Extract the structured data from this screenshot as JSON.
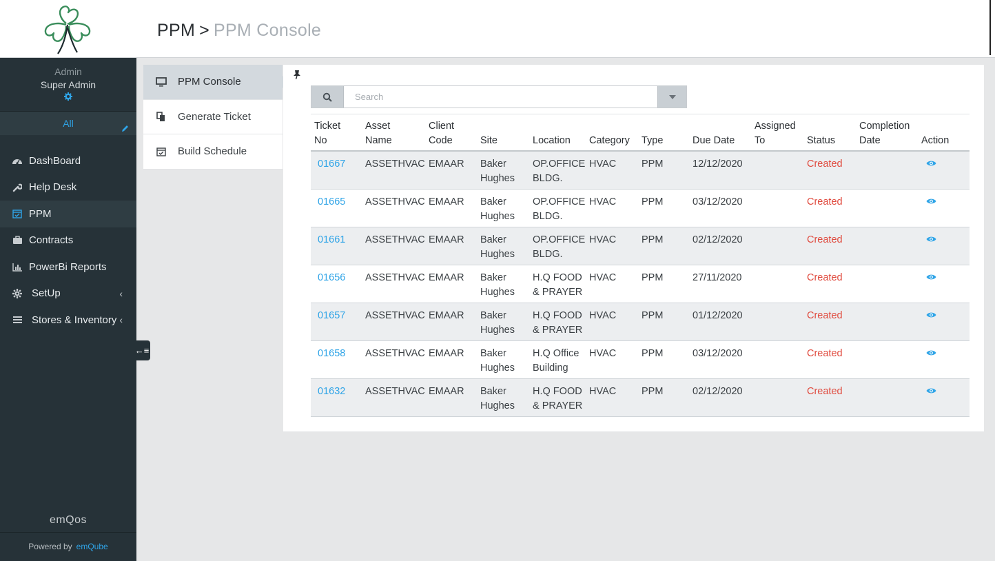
{
  "header": {
    "breadcrumb_root": "PPM",
    "breadcrumb_sep": ">",
    "breadcrumb_current": "PPM Console"
  },
  "sidebar": {
    "user_role": "Admin",
    "user_name": "Super Admin",
    "filter_label": "All",
    "items": [
      {
        "label": "DashBoard",
        "icon": "dashboard-icon"
      },
      {
        "label": "Help Desk",
        "icon": "wrench-icon"
      },
      {
        "label": "PPM",
        "icon": "calendar-check-icon"
      },
      {
        "label": "Contracts",
        "icon": "briefcase-icon"
      },
      {
        "label": "PowerBi Reports",
        "icon": "bar-chart-icon"
      },
      {
        "label": "SetUp",
        "icon": "gear-icon",
        "chevron": "‹"
      },
      {
        "label": "Stores & Inventory",
        "icon": "list-icon",
        "chevron": "‹"
      }
    ],
    "brand": "emQos",
    "powered_by": "Powered by",
    "powered_link": "emQube",
    "toggle": "←≡"
  },
  "submenu": {
    "items": [
      {
        "label": "PPM Console",
        "icon": "monitor-icon"
      },
      {
        "label": "Generate Ticket",
        "icon": "copy-icon"
      },
      {
        "label": "Build Schedule",
        "icon": "calendar-icon"
      }
    ]
  },
  "search": {
    "placeholder": "Search"
  },
  "table": {
    "headers": {
      "ticket_no": [
        "Ticket",
        "No"
      ],
      "asset_name": [
        "Asset",
        "Name"
      ],
      "client_code": [
        "Client",
        "Code"
      ],
      "site": "Site",
      "location": "Location",
      "category": "Category",
      "type": "Type",
      "due_date": "Due Date",
      "assigned_to": [
        "Assigned",
        "To"
      ],
      "status": "Status",
      "completion_date": [
        "Completion",
        "Date"
      ],
      "action": "Action"
    },
    "rows": [
      {
        "ticket": "01667",
        "asset": "ASSETHVAC",
        "client": "EMAAR",
        "site": [
          "Baker",
          "Hughes"
        ],
        "location": [
          "OP.OFFICE",
          "BLDG."
        ],
        "category": "HVAC",
        "type": "PPM",
        "due": "12/12/2020",
        "assigned": "",
        "status": "Created",
        "completion": ""
      },
      {
        "ticket": "01665",
        "asset": "ASSETHVAC",
        "client": "EMAAR",
        "site": [
          "Baker",
          "Hughes"
        ],
        "location": [
          "OP.OFFICE",
          "BLDG."
        ],
        "category": "HVAC",
        "type": "PPM",
        "due": "03/12/2020",
        "assigned": "",
        "status": "Created",
        "completion": ""
      },
      {
        "ticket": "01661",
        "asset": "ASSETHVAC",
        "client": "EMAAR",
        "site": [
          "Baker",
          "Hughes"
        ],
        "location": [
          "OP.OFFICE",
          "BLDG."
        ],
        "category": "HVAC",
        "type": "PPM",
        "due": "02/12/2020",
        "assigned": "",
        "status": "Created",
        "completion": ""
      },
      {
        "ticket": "01656",
        "asset": "ASSETHVAC",
        "client": "EMAAR",
        "site": [
          "Baker",
          "Hughes"
        ],
        "location": [
          "H.Q FOOD",
          "& PRAYER"
        ],
        "category": "HVAC",
        "type": "PPM",
        "due": "27/11/2020",
        "assigned": "",
        "status": "Created",
        "completion": ""
      },
      {
        "ticket": "01657",
        "asset": "ASSETHVAC",
        "client": "EMAAR",
        "site": [
          "Baker",
          "Hughes"
        ],
        "location": [
          "H.Q FOOD",
          "& PRAYER"
        ],
        "category": "HVAC",
        "type": "PPM",
        "due": "01/12/2020",
        "assigned": "",
        "status": "Created",
        "completion": ""
      },
      {
        "ticket": "01658",
        "asset": "ASSETHVAC",
        "client": "EMAAR",
        "site": [
          "Baker",
          "Hughes"
        ],
        "location": [
          "H.Q Office",
          "Building"
        ],
        "category": "HVAC",
        "type": "PPM",
        "due": "03/12/2020",
        "assigned": "",
        "status": "Created",
        "completion": ""
      },
      {
        "ticket": "01632",
        "asset": "ASSETHVAC",
        "client": "EMAAR",
        "site": [
          "Baker",
          "Hughes"
        ],
        "location": [
          "H.Q FOOD",
          "& PRAYER"
        ],
        "category": "HVAC",
        "type": "PPM",
        "due": "02/12/2020",
        "assigned": "",
        "status": "Created",
        "completion": ""
      }
    ]
  },
  "colors": {
    "sidebar_bg": "#263238",
    "accent_link": "#2fa4e7",
    "status_created": "#e04b3f"
  }
}
